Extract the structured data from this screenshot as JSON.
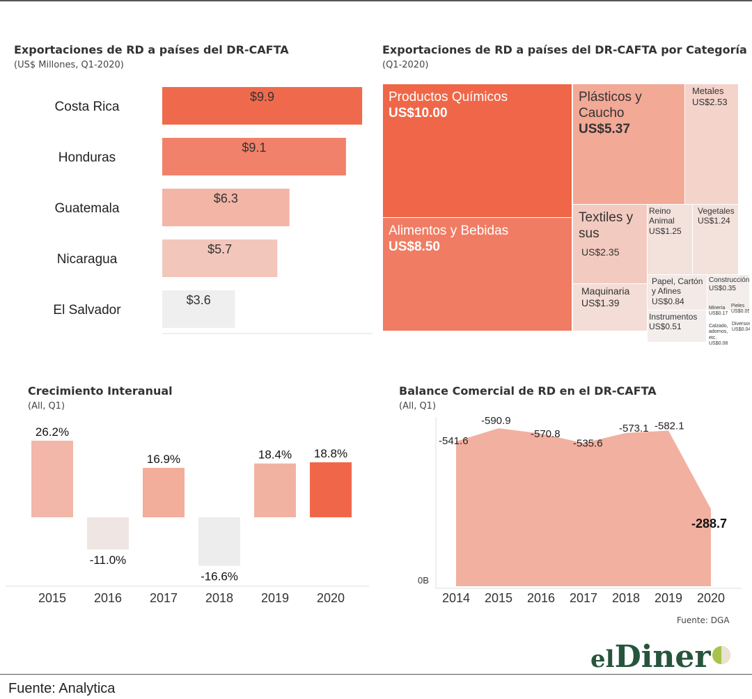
{
  "bar_chart": {
    "title": "Exportaciones de RD a países del  DR-CAFTA",
    "subtitle": "(US$ Millones, Q1-2020)",
    "chart_data": {
      "type": "bar",
      "orientation": "horizontal",
      "categories": [
        "Costa Rica",
        "Honduras",
        "Guatemala",
        "Nicaragua",
        "El Salvador"
      ],
      "values": [
        9.9,
        9.1,
        6.3,
        5.7,
        3.6
      ],
      "value_labels": [
        "$9.9",
        "$9.1",
        "$6.3",
        "$5.7",
        "$3.6"
      ],
      "colors": [
        "#ef6a4d",
        "#f1816a",
        "#f2b5a6",
        "#f3c6bb",
        "#efefef"
      ],
      "xlim": [
        0,
        10
      ]
    }
  },
  "treemap": {
    "title": "Exportaciones de RD a países del DR-CAFTA por Categoría",
    "subtitle": "(Q1-2020)",
    "chart_data": {
      "type": "treemap",
      "items": [
        {
          "name": "Productos Químicos",
          "value_label": "US$10.00",
          "value": 10.0,
          "color": "#ef6748"
        },
        {
          "name": "Alimentos y Bebidas",
          "value_label": "US$8.50",
          "value": 8.5,
          "color": "#f07c63"
        },
        {
          "name": "Plásticos y Caucho",
          "value_label": "US$5.37",
          "value": 5.37,
          "color": "#f2a996"
        },
        {
          "name": "Metales",
          "value_label": "US$2.53",
          "value": 2.53,
          "color": "#f4d3cb"
        },
        {
          "name": "Textiles y sus",
          "value_label": "US$2.35",
          "value": 2.35,
          "color": "#f3cabf"
        },
        {
          "name": "Reino Animal",
          "value_label": "US$1.25",
          "value": 1.25,
          "color": "#f3e1dc"
        },
        {
          "name": "Vegetales",
          "value_label": "US$1.24",
          "value": 1.24,
          "color": "#f3e1dc"
        },
        {
          "name": "Maquinaria",
          "value_label": "US$1.39",
          "value": 1.39,
          "color": "#f4ddd6"
        },
        {
          "name": "Papel, Cartón y Afines",
          "value_label": "US$0.84",
          "value": 0.84,
          "color": "#f3eae7"
        },
        {
          "name": "Construcción",
          "value_label": "US$0.35",
          "value": 0.35,
          "color": "#f3eeec"
        },
        {
          "name": "Instrumentos",
          "value_label": "US$0.51",
          "value": 0.51,
          "color": "#f3eeec"
        },
        {
          "name": "Minería",
          "value_label": "US$0.17",
          "value": 0.17,
          "color": "#f3f0ef"
        },
        {
          "name": "Pieles",
          "value_label": "US$0.05",
          "value": 0.05,
          "color": "#f3f0ef"
        },
        {
          "name": "Calzado, adornos, etc.",
          "value_label": "US$0.08",
          "value": 0.08,
          "color": "#f3f0ef"
        },
        {
          "name": "Diversos",
          "value_label": "US$0.04",
          "value": 0.04,
          "color": "#f3f0ef"
        }
      ]
    }
  },
  "growth_chart": {
    "title": "Crecimiento Interanual",
    "subtitle": "(All, Q1)",
    "chart_data": {
      "type": "bar",
      "categories": [
        "2015",
        "2016",
        "2017",
        "2018",
        "2019",
        "2020"
      ],
      "values": [
        26.2,
        -11.0,
        16.9,
        -16.6,
        18.4,
        18.8
      ],
      "value_labels": [
        "26.2%",
        "-11.0%",
        "16.9%",
        "-16.6%",
        "18.4%",
        "18.8%"
      ],
      "colors": [
        "#f2b7a8",
        "#efe6e3",
        "#f2ad9b",
        "#ededed",
        "#f2b2a2",
        "#ef6748"
      ],
      "ylim": [
        -20,
        28
      ]
    }
  },
  "balance_chart": {
    "title": "Balance Comercial de RD en el DR-CAFTA",
    "subtitle": "(All, Q1)",
    "zero_label": "0B",
    "source": "Fuente: DGA",
    "chart_data": {
      "type": "area",
      "x": [
        "2014",
        "2015",
        "2016",
        "2017",
        "2018",
        "2019",
        "2020"
      ],
      "values": [
        -541.6,
        -590.9,
        -570.8,
        -535.6,
        -573.1,
        -582.1,
        -288.7
      ],
      "value_labels": [
        "-541.6",
        "-590.9",
        "-570.8",
        "-535.6",
        "-573.1",
        "-582.1",
        "-288.7"
      ],
      "color": "#f2b0a0",
      "ylim": [
        0,
        -620
      ]
    }
  },
  "footer": {
    "text": "Fuente: Analytica",
    "logo_el": "el",
    "logo_dinero": "Diner"
  }
}
